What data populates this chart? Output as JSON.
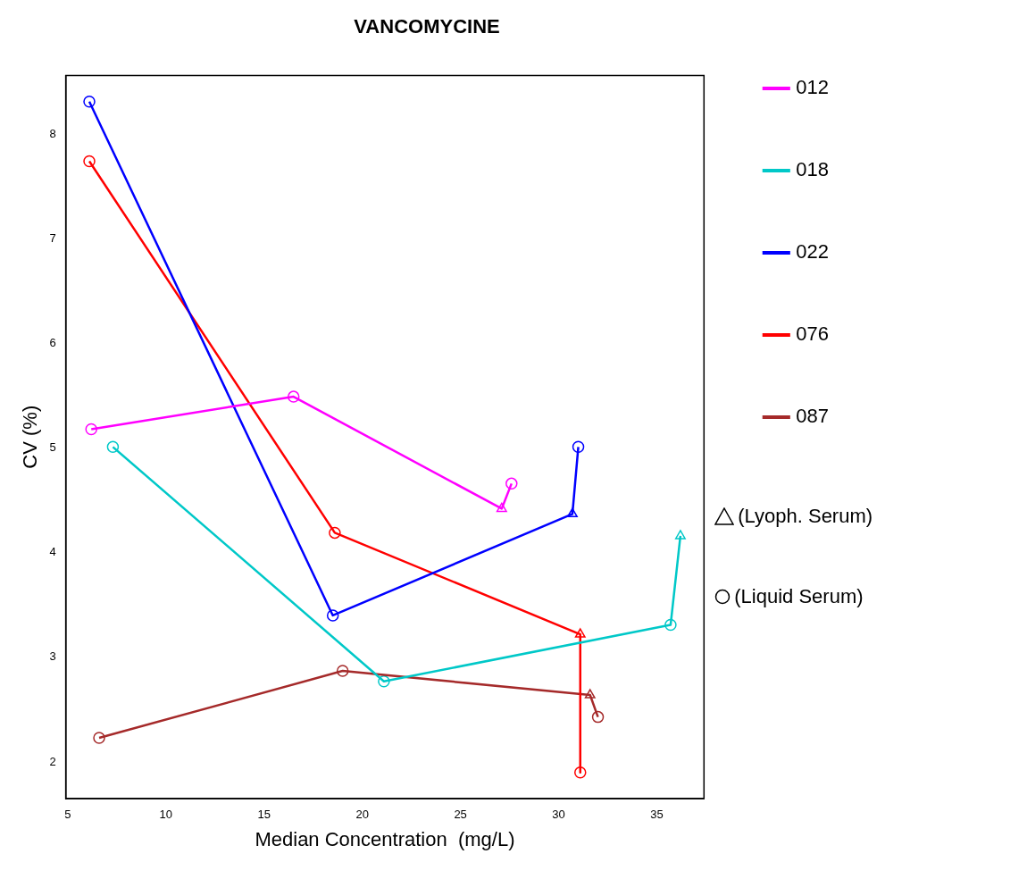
{
  "chart_data": {
    "type": "line",
    "title": "VANCOMYCINE",
    "xlabel": "Median Concentration  (mg/L)",
    "ylabel": "CV (%)",
    "annotations": [
      "(Lyoph. Serum)",
      "(Liquid Serum)"
    ],
    "xlim": [
      4.9,
      37.4
    ],
    "ylim": [
      1.65,
      8.56
    ],
    "xticks": [
      5,
      10,
      15,
      20,
      25,
      30,
      35
    ],
    "yticks": [
      2,
      3,
      4,
      5,
      6,
      7,
      8
    ],
    "grid": false,
    "legend": "right",
    "series": [
      {
        "name": "012",
        "color": "#ff00ff",
        "marker": "none",
        "x": [
          6.2,
          16.5,
          27.1,
          27.6
        ],
        "values": [
          5.18,
          5.49,
          4.42,
          4.66
        ]
      },
      {
        "name": "018",
        "color": "#00c8c8",
        "marker": "none",
        "x": [
          7.3,
          21.1,
          35.7,
          36.2
        ],
        "values": [
          5.01,
          2.77,
          3.31,
          4.16
        ]
      },
      {
        "name": "022",
        "color": "#0000ff",
        "marker": "none",
        "x": [
          6.1,
          18.5,
          30.7,
          31.0
        ],
        "values": [
          8.31,
          3.4,
          4.37,
          5.01
        ]
      },
      {
        "name": "076",
        "color": "#ff0000",
        "marker": "none",
        "x": [
          6.1,
          18.6,
          31.1,
          31.1
        ],
        "values": [
          7.74,
          4.19,
          3.22,
          1.9
        ]
      },
      {
        "name": "087",
        "color": "#a52a2a",
        "marker": "none",
        "x": [
          6.6,
          19.0,
          31.6,
          32.0
        ],
        "values": [
          2.23,
          2.87,
          2.64,
          2.43
        ]
      },
      {
        "type": "scatter",
        "marker": "triangle",
        "x": [
          27.1,
          36.2,
          30.7,
          31.1,
          31.6
        ],
        "values": [
          4.42,
          4.16,
          4.37,
          3.22,
          2.64
        ],
        "colors": [
          "#ff00ff",
          "#00c8c8",
          "#0000ff",
          "#ff0000",
          "#a52a2a"
        ]
      },
      {
        "type": "scatter",
        "marker": "circle",
        "x": [
          6.2,
          16.5,
          27.6,
          7.3,
          21.1,
          35.7,
          6.1,
          18.5,
          31.0,
          6.1,
          18.6,
          31.1,
          6.6,
          19.0,
          32.0
        ],
        "values": [
          5.18,
          5.49,
          4.66,
          5.01,
          2.77,
          3.31,
          8.31,
          3.4,
          5.01,
          7.74,
          4.19,
          1.9,
          2.23,
          2.87,
          2.43
        ],
        "colors": [
          "#ff00ff",
          "#ff00ff",
          "#ff00ff",
          "#00c8c8",
          "#00c8c8",
          "#00c8c8",
          "#0000ff",
          "#0000ff",
          "#0000ff",
          "#ff0000",
          "#ff0000",
          "#ff0000",
          "#a52a2a",
          "#a52a2a",
          "#a52a2a"
        ]
      }
    ]
  }
}
